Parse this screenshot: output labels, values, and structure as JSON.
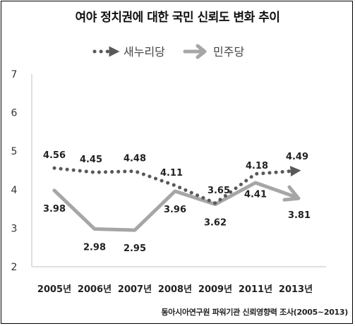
{
  "chart_data": {
    "type": "line",
    "title": "여야 정치권에 대한 국민 신뢰도 변화 추이",
    "source": "동아시아연구원 파워기관 신뢰영향력 조사(2005~2013)",
    "categories": [
      "2005년",
      "2006년",
      "2007년",
      "2008년",
      "2009년",
      "2011년",
      "2013년"
    ],
    "ylim": [
      2,
      7
    ],
    "yticks": [
      "2",
      "3",
      "4",
      "5",
      "6",
      "7"
    ],
    "grid": false,
    "legend_position": "top-center",
    "series": [
      {
        "name": "새누리당",
        "style": "dotted",
        "color": "#595959",
        "values": [
          4.56,
          4.45,
          4.48,
          4.11,
          3.65,
          4.41,
          4.49
        ],
        "labels": [
          "4.56",
          "4.45",
          "4.48",
          "4.11",
          "3.65",
          "4.41",
          "4.49"
        ]
      },
      {
        "name": "민주당",
        "style": "solid",
        "color": "#a6a6a6",
        "values": [
          3.98,
          2.98,
          2.95,
          3.96,
          3.62,
          4.18,
          3.81
        ],
        "labels": [
          "3.98",
          "2.98",
          "2.95",
          "3.96",
          "3.62",
          "4.18",
          "3.81"
        ]
      }
    ]
  }
}
